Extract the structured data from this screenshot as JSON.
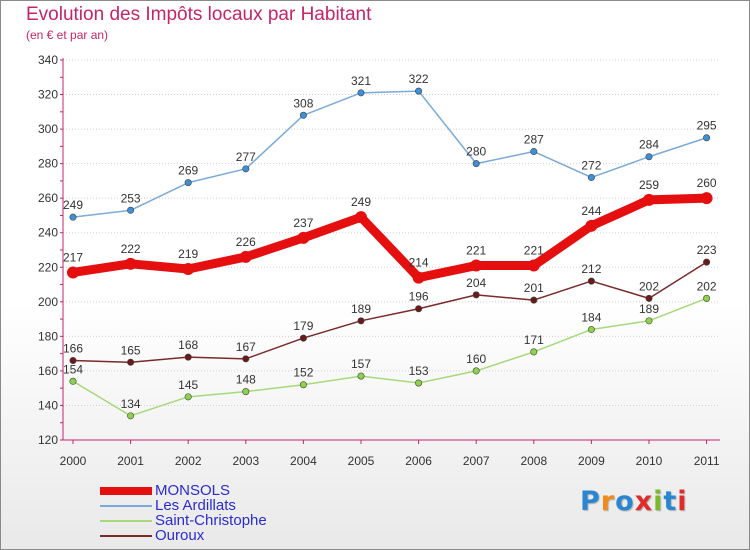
{
  "header": {
    "title": "Evolution des Impôts locaux par Habitant",
    "subtitle": "(en € et par an)"
  },
  "logo": {
    "text": "Proxiti",
    "colors": [
      "#2a86d1",
      "#f08a1c",
      "#2a86d1",
      "#e02b2b",
      "#7ab929",
      "#2a86d1",
      "#e02b2b"
    ]
  },
  "colors": {
    "title": "#c4246b",
    "axis": "#c4246b",
    "grid": "#d0d0d0",
    "legend_text": "#2b2bd1"
  },
  "chart_data": {
    "type": "line",
    "x": [
      "2000",
      "2001",
      "2002",
      "2003",
      "2004",
      "2005",
      "2006",
      "2007",
      "2008",
      "2009",
      "2010",
      "2011"
    ],
    "ylim": [
      120,
      340
    ],
    "yticks": [
      120,
      140,
      160,
      180,
      200,
      220,
      240,
      260,
      280,
      300,
      320,
      340
    ],
    "grid": true,
    "legend_position": "bottom-left",
    "series": [
      {
        "name": "MONSOLS",
        "color": "#e60f0f",
        "dot": "#e60f0f",
        "width": "thick",
        "values": [
          217,
          222,
          219,
          226,
          237,
          249,
          214,
          221,
          221,
          244,
          259,
          260
        ]
      },
      {
        "name": "Les Ardillats",
        "color": "#7aaad8",
        "dot": "#3d8fd6",
        "width": "thin",
        "values": [
          249,
          253,
          269,
          277,
          308,
          321,
          322,
          280,
          287,
          272,
          284,
          295
        ]
      },
      {
        "name": "Saint-Christophe",
        "color": "#a6d97a",
        "dot": "#8dd24a",
        "width": "thin",
        "values": [
          154,
          134,
          145,
          148,
          152,
          157,
          153,
          160,
          171,
          184,
          189,
          202
        ]
      },
      {
        "name": "Ouroux",
        "color": "#7a2a2a",
        "dot": "#6a1a1a",
        "width": "thin",
        "values": [
          166,
          165,
          168,
          167,
          179,
          189,
          196,
          204,
          201,
          212,
          202,
          223
        ]
      }
    ]
  }
}
